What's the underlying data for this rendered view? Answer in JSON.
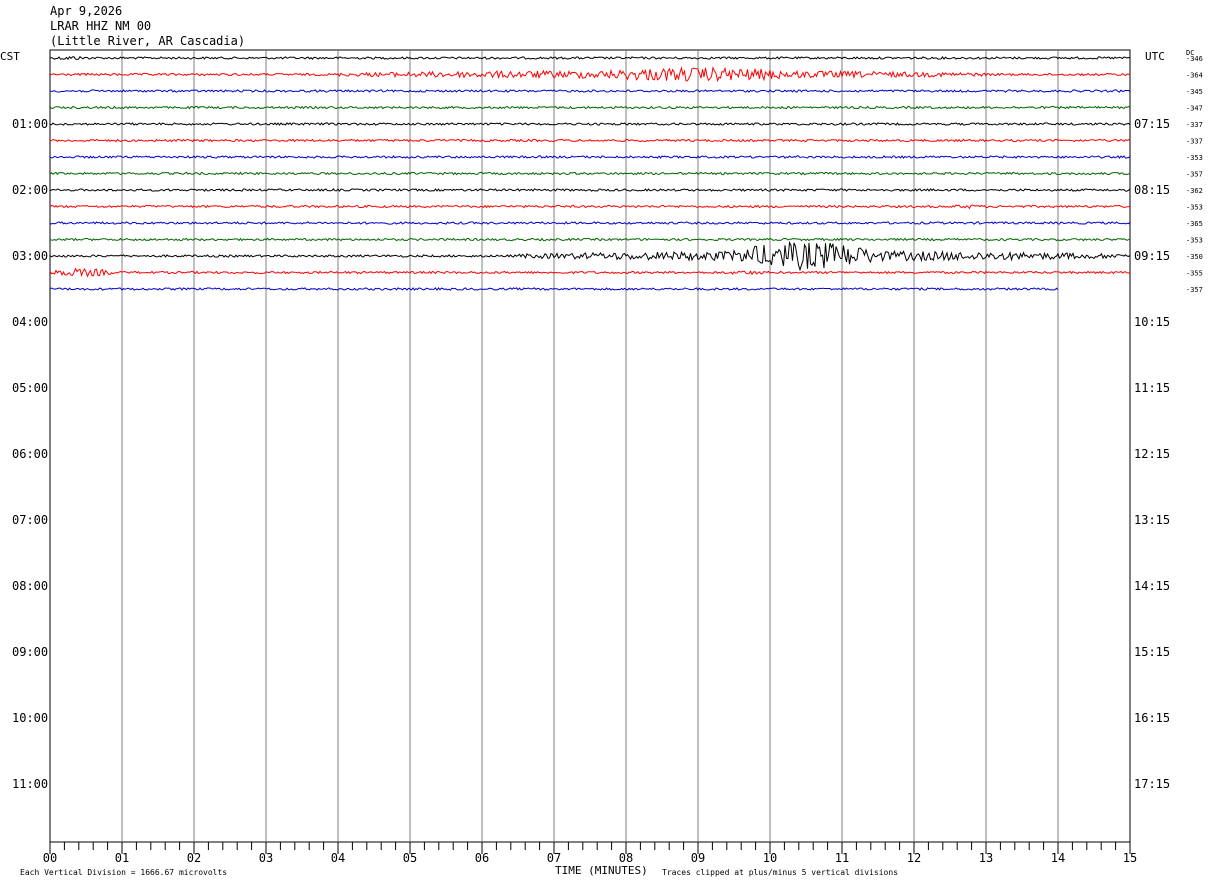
{
  "header": {
    "date": "Apr 9,2026",
    "station": "LRAR HHZ NM 00",
    "location": "(Little River, AR Cascadia)"
  },
  "left_tz": "CST",
  "right_tz": "UTC",
  "dc_label": "DC",
  "footer": {
    "scale_note": "Each Vertical Division = 1666.67 microvolts",
    "x_title": "TIME (MINUTES)",
    "clip_note": "Traces clipped at plus/minus 5 vertical divisions"
  },
  "chart_data": {
    "type": "line",
    "title": "",
    "xlabel": "TIME (MINUTES)",
    "xlim": [
      0,
      15
    ],
    "x_ticks": [
      "00",
      "01",
      "02",
      "03",
      "04",
      "05",
      "06",
      "07",
      "08",
      "09",
      "10",
      "11",
      "12",
      "13",
      "14",
      "15"
    ],
    "left_hour_labels": [
      "01:00",
      "02:00",
      "03:00",
      "04:00",
      "05:00",
      "06:00",
      "07:00",
      "08:00",
      "09:00",
      "10:00",
      "11:00"
    ],
    "right_hour_labels": [
      "07:15",
      "08:15",
      "09:15",
      "10:15",
      "11:15",
      "12:15",
      "13:15",
      "14:15",
      "15:15",
      "16:15",
      "17:15"
    ],
    "trace_colors": [
      "#000000",
      "#ff0000",
      "#0000cc",
      "#006600"
    ],
    "rows": [
      {
        "dc": "-346",
        "color": "#000000",
        "end_min": 15,
        "events": [
          {
            "start": 0,
            "end": 0.6,
            "amp": 2
          }
        ]
      },
      {
        "dc": "-364",
        "color": "#ff0000",
        "end_min": 15,
        "events": [
          {
            "start": 4,
            "end": 13,
            "amp": 4
          },
          {
            "start": 7.5,
            "end": 10.5,
            "amp": 7
          }
        ]
      },
      {
        "dc": "-345",
        "color": "#0000cc",
        "end_min": 15,
        "events": []
      },
      {
        "dc": "-347",
        "color": "#006600",
        "end_min": 15,
        "events": []
      },
      {
        "dc": "-337",
        "color": "#000000",
        "end_min": 15,
        "events": []
      },
      {
        "dc": "-337",
        "color": "#ff0000",
        "end_min": 15,
        "events": []
      },
      {
        "dc": "-353",
        "color": "#0000cc",
        "end_min": 15,
        "events": []
      },
      {
        "dc": "-357",
        "color": "#006600",
        "end_min": 15,
        "events": []
      },
      {
        "dc": "-362",
        "color": "#000000",
        "end_min": 15,
        "events": []
      },
      {
        "dc": "-353",
        "color": "#ff0000",
        "end_min": 15,
        "events": [
          {
            "start": 12.5,
            "end": 13,
            "amp": 2
          }
        ]
      },
      {
        "dc": "-365",
        "color": "#0000cc",
        "end_min": 15,
        "events": []
      },
      {
        "dc": "-353",
        "color": "#006600",
        "end_min": 15,
        "events": []
      },
      {
        "dc": "-350",
        "color": "#000000",
        "end_min": 15,
        "events": [
          {
            "start": 6.5,
            "end": 15,
            "amp": 5
          },
          {
            "start": 9.5,
            "end": 11.5,
            "amp": 14
          }
        ]
      },
      {
        "dc": "-355",
        "color": "#ff0000",
        "end_min": 15,
        "events": [
          {
            "start": 0,
            "end": 0.9,
            "amp": 4
          },
          {
            "start": 9.3,
            "end": 10,
            "amp": 2
          }
        ]
      },
      {
        "dc": "-357",
        "color": "#0000cc",
        "end_min": 14,
        "events": []
      }
    ]
  }
}
